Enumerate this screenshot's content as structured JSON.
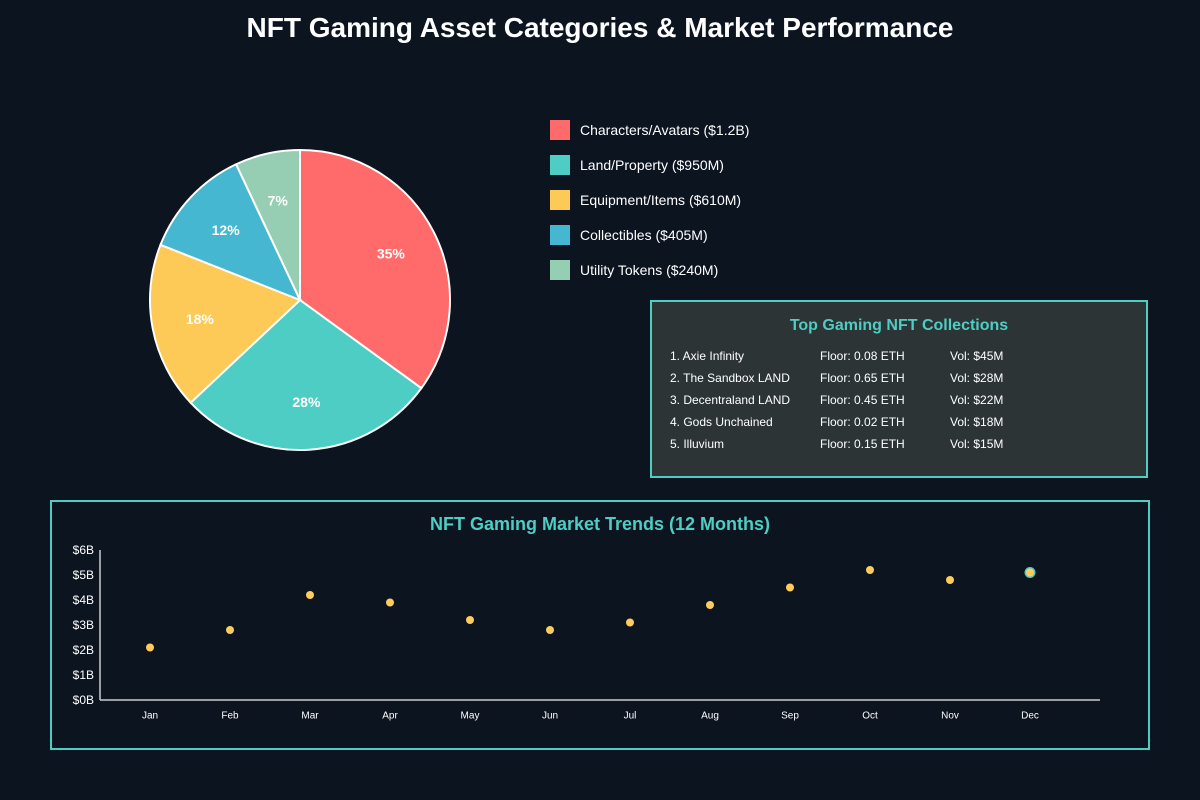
{
  "page_title": "NFT Gaming Asset Categories & Market Performance",
  "colors": {
    "background": "#0c1420",
    "accent": "#4ecdc4",
    "panel": "#2c3436",
    "trend_point": "#ffcb5c"
  },
  "legend": [
    {
      "label": "Characters/Avatars ($1.2B)",
      "color": "#ff6b6b"
    },
    {
      "label": "Land/Property ($950M)",
      "color": "#4ecdc4"
    },
    {
      "label": "Equipment/Items ($610M)",
      "color": "#feca57"
    },
    {
      "label": "Collectibles ($405M)",
      "color": "#45b7d1"
    },
    {
      "label": "Utility Tokens ($240M)",
      "color": "#96ceb4"
    }
  ],
  "collections": {
    "title": "Top Gaming NFT Collections",
    "rows": [
      {
        "name": "1. Axie Infinity",
        "floor": "Floor: 0.08 ETH",
        "vol": "Vol: $45M"
      },
      {
        "name": "2. The Sandbox LAND",
        "floor": "Floor: 0.65 ETH",
        "vol": "Vol: $28M"
      },
      {
        "name": "3. Decentraland LAND",
        "floor": "Floor: 0.45 ETH",
        "vol": "Vol: $22M"
      },
      {
        "name": "4. Gods Unchained",
        "floor": "Floor: 0.02 ETH",
        "vol": "Vol: $18M"
      },
      {
        "name": "5. Illuvium",
        "floor": "Floor: 0.15 ETH",
        "vol": "Vol: $15M"
      }
    ]
  },
  "trends_title": "NFT Gaming Market Trends (12 Months)",
  "chart_data": [
    {
      "type": "pie",
      "title": "NFT Gaming Asset Categories",
      "categories": [
        "Characters/Avatars",
        "Land/Property",
        "Equipment/Items",
        "Collectibles",
        "Utility Tokens"
      ],
      "values": [
        35,
        28,
        18,
        12,
        7
      ],
      "data_labels": [
        "35%",
        "28%",
        "18%",
        "12%",
        "7%"
      ],
      "colors": [
        "#ff6b6b",
        "#4ecdc4",
        "#feca57",
        "#45b7d1",
        "#96ceb4"
      ]
    },
    {
      "type": "scatter",
      "title": "NFT Gaming Market Trends (12 Months)",
      "categories": [
        "Jan",
        "Feb",
        "Mar",
        "Apr",
        "May",
        "Jun",
        "Jul",
        "Aug",
        "Sep",
        "Oct",
        "Nov",
        "Dec"
      ],
      "values": [
        2.1,
        2.8,
        4.2,
        3.9,
        3.2,
        2.8,
        3.1,
        3.8,
        4.5,
        5.2,
        4.8,
        5.1
      ],
      "y_ticks": [
        "$0B",
        "$1B",
        "$2B",
        "$3B",
        "$4B",
        "$5B",
        "$6B"
      ],
      "ylim": [
        0,
        6
      ],
      "xlabel": "",
      "ylabel": "",
      "highlight_index": 11
    }
  ]
}
